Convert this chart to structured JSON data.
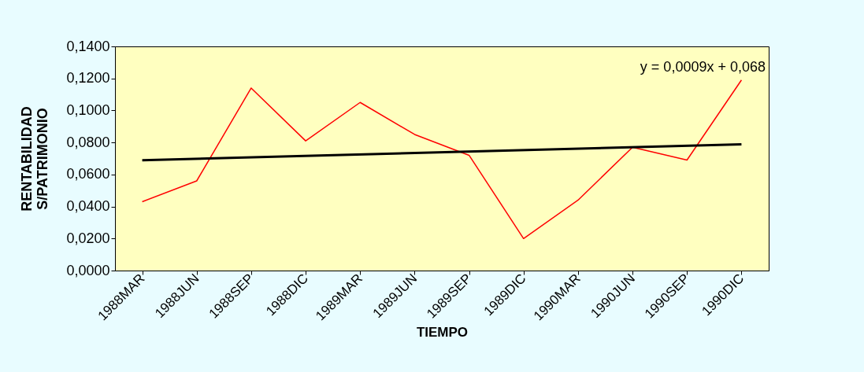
{
  "chart_data": {
    "type": "line",
    "xlabel": "TIEMPO",
    "ylabel": "RENTABILIDAD S/PATRIMONIO",
    "categories": [
      "1988MAR",
      "1988JUN",
      "1988SEP",
      "1988DIC",
      "1989MAR",
      "1989JUN",
      "1989SEP",
      "1989DIC",
      "1990MAR",
      "1990JUN",
      "1990SEP",
      "1990DIC"
    ],
    "series": [
      {
        "color": "#ff0000",
        "values": [
          0.043,
          0.056,
          0.114,
          0.081,
          0.105,
          0.085,
          0.072,
          0.02,
          0.044,
          0.077,
          0.069,
          0.119
        ]
      },
      {
        "color": "#000000",
        "x": [
          "1988MAR",
          "1990DIC"
        ],
        "values": [
          0.0689,
          0.0788
        ]
      }
    ],
    "ylim": [
      0,
      0.14
    ],
    "yticks": [
      {
        "value": 0,
        "label": "0,0000"
      },
      {
        "value": 0.02,
        "label": "0,0200"
      },
      {
        "value": 0.04,
        "label": "0,0400"
      },
      {
        "value": 0.06,
        "label": "0,0600"
      },
      {
        "value": 0.08,
        "label": "0,0800"
      },
      {
        "value": 0.1,
        "label": "0,1000"
      },
      {
        "value": 0.12,
        "label": "0,1200"
      },
      {
        "value": 0.14,
        "label": "0,1400"
      }
    ],
    "annotations": [
      "y = 0,0009x + 0,068"
    ],
    "marker": "none",
    "line_style": "solid"
  }
}
